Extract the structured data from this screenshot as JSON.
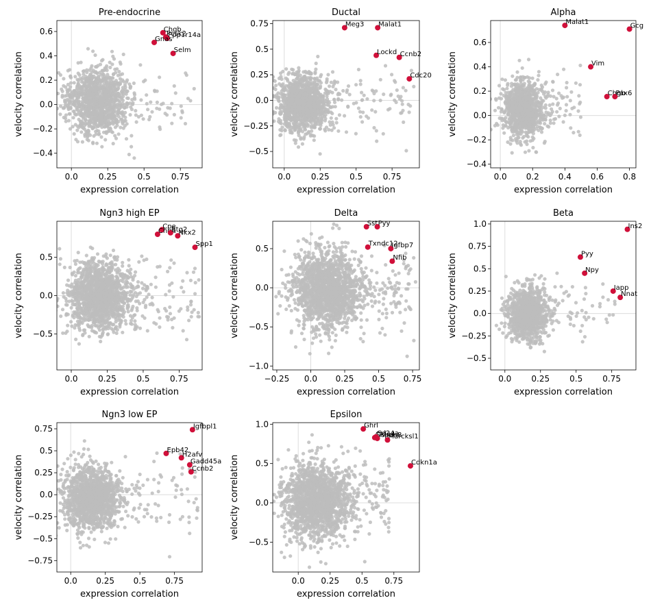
{
  "figure": {
    "colors": {
      "background": "#bdbdbd",
      "highlight": "#d0103a",
      "zero_line": "#dcdcdc"
    }
  },
  "chart_data": [
    {
      "type": "scatter",
      "title": "Pre-endocrine",
      "xlabel": "expression correlation",
      "ylabel": "velocity correlation",
      "xlim": [
        -0.1,
        0.9
      ],
      "ylim": [
        -0.52,
        0.69
      ],
      "xticks": [
        0.0,
        0.25,
        0.5,
        0.75
      ],
      "yticks": [
        -0.4,
        -0.2,
        0.0,
        0.2,
        0.4,
        0.6
      ],
      "cloud": {
        "cx": 0.18,
        "cy": 0.02,
        "sx": 0.1,
        "sy": 0.14,
        "n": 1200,
        "seed": 11,
        "tail": [
          0.3,
          0.85
        ]
      },
      "highlighted": [
        {
          "gene": "Chgb",
          "x": 0.63,
          "y": 0.59
        },
        {
          "gene": "Pcsk2",
          "x": 0.65,
          "y": 0.555
        },
        {
          "gene": "Ppp1r14a",
          "x": 0.66,
          "y": 0.545
        },
        {
          "gene": "Gnas",
          "x": 0.57,
          "y": 0.51
        },
        {
          "gene": "Selm",
          "x": 0.7,
          "y": 0.42
        }
      ]
    },
    {
      "type": "scatter",
      "title": "Ductal",
      "xlabel": "expression correlation",
      "ylabel": "velocity correlation",
      "xlim": [
        -0.08,
        0.94
      ],
      "ylim": [
        -0.66,
        0.78
      ],
      "xticks": [
        0.0,
        0.25,
        0.5,
        0.75
      ],
      "yticks": [
        -0.5,
        -0.25,
        0.0,
        0.25,
        0.5,
        0.75
      ],
      "cloud": {
        "cx": 0.12,
        "cy": -0.03,
        "sx": 0.09,
        "sy": 0.14,
        "n": 1300,
        "seed": 23,
        "tail": [
          0.28,
          0.92
        ]
      },
      "highlighted": [
        {
          "gene": "Meg3",
          "x": 0.42,
          "y": 0.71
        },
        {
          "gene": "Malat1",
          "x": 0.65,
          "y": 0.71
        },
        {
          "gene": "Lockd",
          "x": 0.64,
          "y": 0.44
        },
        {
          "gene": "Ccnb2",
          "x": 0.8,
          "y": 0.42
        },
        {
          "gene": "Cdc20",
          "x": 0.87,
          "y": 0.21
        }
      ]
    },
    {
      "type": "scatter",
      "title": "Alpha",
      "xlabel": "expression correlation",
      "ylabel": "velocity correlation",
      "xlim": [
        -0.06,
        0.84
      ],
      "ylim": [
        -0.43,
        0.78
      ],
      "xticks": [
        0.0,
        0.2,
        0.4,
        0.6,
        0.8
      ],
      "yticks": [
        -0.4,
        -0.2,
        0.0,
        0.2,
        0.4,
        0.6
      ],
      "cloud": {
        "cx": 0.14,
        "cy": 0.05,
        "sx": 0.06,
        "sy": 0.12,
        "n": 1100,
        "seed": 37,
        "tail": [
          0.25,
          0.5
        ]
      },
      "highlighted": [
        {
          "gene": "Malat1",
          "x": 0.4,
          "y": 0.74
        },
        {
          "gene": "Gcg",
          "x": 0.8,
          "y": 0.71
        },
        {
          "gene": "Vim",
          "x": 0.56,
          "y": 0.4
        },
        {
          "gene": "Chgb",
          "x": 0.66,
          "y": 0.155
        },
        {
          "gene": "Pax6",
          "x": 0.71,
          "y": 0.155
        }
      ]
    },
    {
      "type": "scatter",
      "title": "Ngn3 high EP",
      "xlabel": "expression correlation",
      "ylabel": "velocity correlation",
      "xlim": [
        -0.1,
        0.91
      ],
      "ylim": [
        -0.97,
        0.97
      ],
      "xticks": [
        0.0,
        0.25,
        0.5,
        0.75
      ],
      "yticks": [
        -0.5,
        0.0,
        0.5
      ],
      "cloud": {
        "cx": 0.2,
        "cy": 0.0,
        "sx": 0.11,
        "sy": 0.22,
        "n": 1500,
        "seed": 41,
        "tail": [
          0.35,
          0.9
        ]
      },
      "highlighted": [
        {
          "gene": "Cpe",
          "x": 0.63,
          "y": 0.86
        },
        {
          "gene": "Chga",
          "x": 0.6,
          "y": 0.8
        },
        {
          "gene": "Btg2",
          "x": 0.69,
          "y": 0.82
        },
        {
          "gene": "Nkx2",
          "x": 0.74,
          "y": 0.78
        },
        {
          "gene": "Spp1",
          "x": 0.86,
          "y": 0.63
        }
      ]
    },
    {
      "type": "scatter",
      "title": "Delta",
      "xlabel": "expression correlation",
      "ylabel": "velocity correlation",
      "xlim": [
        -0.28,
        0.8
      ],
      "ylim": [
        -1.05,
        0.85
      ],
      "xticks": [
        -0.25,
        0.0,
        0.25,
        0.5,
        0.75
      ],
      "yticks": [
        -1.0,
        -0.5,
        0.0,
        0.5
      ],
      "cloud": {
        "cx": 0.12,
        "cy": -0.02,
        "sx": 0.12,
        "sy": 0.24,
        "n": 1800,
        "seed": 53,
        "tail": [
          0.35,
          0.78
        ]
      },
      "highlighted": [
        {
          "gene": "Sst",
          "x": 0.41,
          "y": 0.78
        },
        {
          "gene": "Pyy",
          "x": 0.49,
          "y": 0.78
        },
        {
          "gene": "Txndc12",
          "x": 0.42,
          "y": 0.52
        },
        {
          "gene": "Igfbp7",
          "x": 0.59,
          "y": 0.5
        },
        {
          "gene": "Nfib",
          "x": 0.6,
          "y": 0.34
        }
      ]
    },
    {
      "type": "scatter",
      "title": "Beta",
      "xlabel": "expression correlation",
      "ylabel": "velocity correlation",
      "xlim": [
        -0.1,
        0.92
      ],
      "ylim": [
        -0.63,
        1.03
      ],
      "xticks": [
        0.0,
        0.25,
        0.5,
        0.75
      ],
      "yticks": [
        -0.5,
        -0.25,
        0.0,
        0.25,
        0.5,
        0.75,
        1.0
      ],
      "cloud": {
        "cx": 0.16,
        "cy": 0.0,
        "sx": 0.07,
        "sy": 0.14,
        "n": 1100,
        "seed": 67,
        "tail": [
          0.25,
          0.78
        ]
      },
      "highlighted": [
        {
          "gene": "Ins2",
          "x": 0.86,
          "y": 0.94
        },
        {
          "gene": "Pyy",
          "x": 0.53,
          "y": 0.63
        },
        {
          "gene": "Npy",
          "x": 0.56,
          "y": 0.45
        },
        {
          "gene": "Iapp",
          "x": 0.76,
          "y": 0.25
        },
        {
          "gene": "Nnat",
          "x": 0.81,
          "y": 0.18
        }
      ]
    },
    {
      "type": "scatter",
      "title": "Ngn3 low EP",
      "xlabel": "expression correlation",
      "ylabel": "velocity correlation",
      "xlim": [
        -0.1,
        0.95
      ],
      "ylim": [
        -0.88,
        0.82
      ],
      "xticks": [
        0.0,
        0.25,
        0.5,
        0.75
      ],
      "yticks": [
        -0.75,
        -0.5,
        -0.25,
        0.0,
        0.25,
        0.5,
        0.75
      ],
      "cloud": {
        "cx": 0.15,
        "cy": -0.03,
        "sx": 0.1,
        "sy": 0.18,
        "n": 1500,
        "seed": 79,
        "tail": [
          0.35,
          0.92
        ]
      },
      "highlighted": [
        {
          "gene": "Igfbpl1",
          "x": 0.88,
          "y": 0.74
        },
        {
          "gene": "Epb42",
          "x": 0.69,
          "y": 0.47
        },
        {
          "gene": "H2afv",
          "x": 0.8,
          "y": 0.42
        },
        {
          "gene": "Gadd45a",
          "x": 0.86,
          "y": 0.34
        },
        {
          "gene": "Ccnb2",
          "x": 0.87,
          "y": 0.26
        }
      ]
    },
    {
      "type": "scatter",
      "title": "Epsilon",
      "xlabel": "expression correlation",
      "ylabel": "velocity correlation",
      "xlim": [
        -0.2,
        0.95
      ],
      "ylim": [
        -0.88,
        1.02
      ],
      "xticks": [
        0.0,
        0.25,
        0.5,
        0.75
      ],
      "yticks": [
        -0.5,
        0.0,
        0.5,
        1.0
      ],
      "cloud": {
        "cx": 0.14,
        "cy": 0.02,
        "sx": 0.13,
        "sy": 0.24,
        "n": 1700,
        "seed": 97,
        "tail": [
          0.35,
          0.72
        ]
      },
      "highlighted": [
        {
          "gene": "Ghrl",
          "x": 0.51,
          "y": 0.94
        },
        {
          "gene": "Cldn4",
          "x": 0.6,
          "y": 0.83
        },
        {
          "gene": "Cd24a",
          "x": 0.61,
          "y": 0.84
        },
        {
          "gene": "Tspan8",
          "x": 0.62,
          "y": 0.82
        },
        {
          "gene": "Marcksl1",
          "x": 0.7,
          "y": 0.8
        },
        {
          "gene": "Cdkn1a",
          "x": 0.88,
          "y": 0.47
        }
      ]
    }
  ]
}
